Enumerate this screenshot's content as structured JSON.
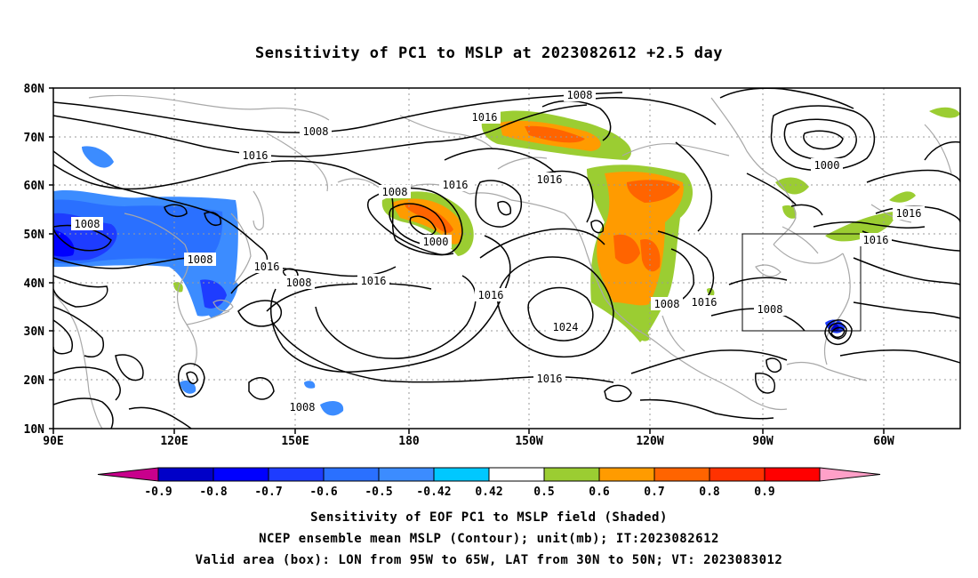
{
  "title": "Sensitivity of PC1 to MSLP at 2023082612 +2.5 day",
  "lat_labels": [
    "80N",
    "70N",
    "60N",
    "50N",
    "40N",
    "30N",
    "20N",
    "10N"
  ],
  "lon_labels": [
    "90E",
    "120E",
    "150E",
    "180",
    "150W",
    "120W",
    "90W",
    "60W"
  ],
  "contour_labels": [
    "1008",
    "1008",
    "1016",
    "1016",
    "1016",
    "1016",
    "1008",
    "1000",
    "1016",
    "1008",
    "1016",
    "1008",
    "1016",
    "1016",
    "1008",
    "1016",
    "1024",
    "1008",
    "1016",
    "1000",
    "1008",
    "1016",
    "1008",
    "1016"
  ],
  "colorbar": {
    "colors": [
      "#c8008c",
      "#0000c8",
      "#0000ff",
      "#1e3cff",
      "#2a70ff",
      "#3c8cff",
      "#00c8ff",
      "#ffffff",
      "#9bcd32",
      "#ff9b00",
      "#ff6400",
      "#ff3200",
      "#ff0000",
      "#ffa0c8"
    ],
    "labels": [
      "-0.9",
      "-0.8",
      "-0.7",
      "-0.6",
      "-0.5",
      "-0.42",
      "0.42",
      "0.5",
      "0.6",
      "0.7",
      "0.8",
      "0.9"
    ]
  },
  "captions": [
    "Sensitivity of EOF PC1 to MSLP field (Shaded)",
    "NCEP ensemble mean MSLP (Contour); unit(mb); IT:2023082612",
    "Valid area (box): LON from 95W to 65W, LAT from 30N to 50N; VT: 2023083012"
  ],
  "valid_box": {
    "lon_min": -95,
    "lon_max": -65,
    "lat_min": 30,
    "lat_max": 50
  }
}
